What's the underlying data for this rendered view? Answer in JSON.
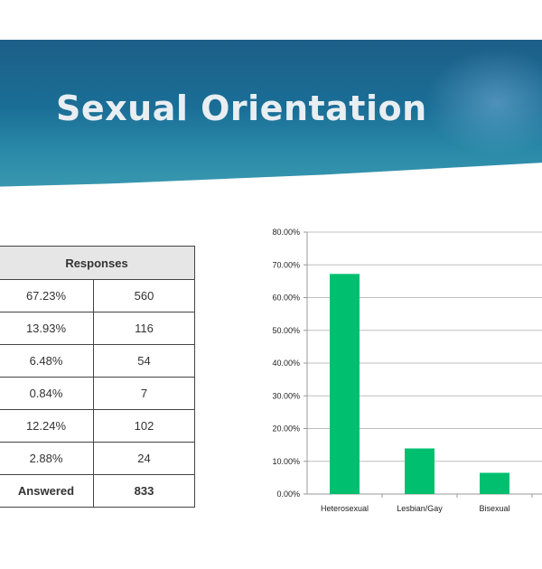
{
  "slide": {
    "title": "Sexual Orientation"
  },
  "table": {
    "header": "Responses",
    "rows": [
      {
        "percent": "67.23%",
        "count": "560"
      },
      {
        "percent": "13.93%",
        "count": "116"
      },
      {
        "percent": "6.48%",
        "count": "54"
      },
      {
        "percent": "0.84%",
        "count": "7"
      },
      {
        "percent": "12.24%",
        "count": "102"
      },
      {
        "percent": "2.88%",
        "count": "24"
      }
    ],
    "total": {
      "label": "Answered",
      "count": "833"
    }
  },
  "colors": {
    "bar": "#00c070",
    "banner": "#1d6a94",
    "header_bg": "#e6e6e6"
  },
  "chart_data": {
    "type": "bar",
    "categories": [
      "Heterosexual",
      "Lesbian/Gay",
      "Bisexual"
    ],
    "values": [
      67.23,
      13.93,
      6.48
    ],
    "yticks": [
      "0.00%",
      "10.00%",
      "20.00%",
      "30.00%",
      "40.00%",
      "50.00%",
      "60.00%",
      "70.00%",
      "80.00%"
    ],
    "ylim": [
      0,
      80
    ],
    "grid": true,
    "title": "",
    "xlabel": "",
    "ylabel": ""
  }
}
